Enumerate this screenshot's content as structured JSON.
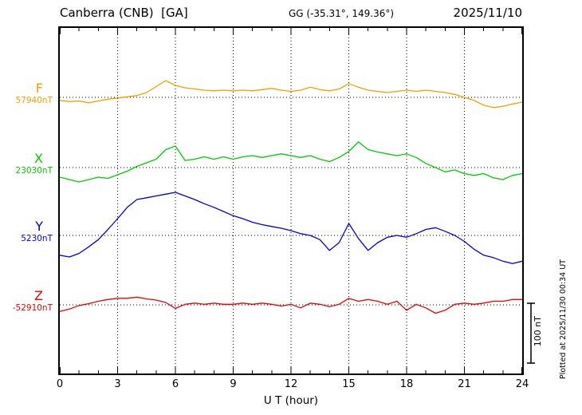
{
  "chart_data": {
    "type": "line",
    "title": "Canberra (CNB)  [GA]",
    "subtitle": "GG (-35.31°, 149.36°)",
    "date": "2025/11/10",
    "xlabel": "U T (hour)",
    "xlim": [
      0,
      24
    ],
    "x_ticks": [
      0,
      3,
      6,
      9,
      12,
      15,
      18,
      21,
      24
    ],
    "grid_hours": [
      3,
      6,
      9,
      12,
      15,
      18,
      21
    ],
    "step_hours": 0.5,
    "unit": "nT",
    "scale_bar": {
      "label": "100 nT",
      "nT": 100
    },
    "plotted_at": "Plotted at 2025/11/30 00:34 UT",
    "series": [
      {
        "name": "F",
        "baseline_label": "57940nT",
        "baseline_nT": 57940,
        "color": "#f0a000",
        "offsets_nT": [
          -5,
          -7,
          -6,
          -9,
          -6,
          -3,
          -1,
          1,
          3,
          8,
          18,
          28,
          20,
          16,
          14,
          12,
          11,
          12,
          11,
          12,
          11,
          13,
          15,
          12,
          10,
          12,
          17,
          13,
          11,
          14,
          23,
          17,
          12,
          10,
          8,
          10,
          12,
          10,
          12,
          10,
          8,
          5,
          0,
          -5,
          -13,
          -17,
          -15,
          -11,
          -8
        ]
      },
      {
        "name": "X",
        "baseline_label": "23030nT",
        "baseline_nT": 23030,
        "color": "#00cc00",
        "offsets_nT": [
          -16,
          -20,
          -24,
          -20,
          -16,
          -18,
          -12,
          -6,
          2,
          8,
          14,
          30,
          36,
          12,
          14,
          18,
          14,
          18,
          14,
          18,
          20,
          17,
          20,
          23,
          20,
          17,
          20,
          14,
          10,
          17,
          27,
          43,
          30,
          26,
          23,
          20,
          23,
          17,
          7,
          0,
          -7,
          -4,
          -10,
          -13,
          -10,
          -17,
          -20,
          -13,
          -10
        ]
      },
      {
        "name": "Y",
        "baseline_label": "5230nT",
        "baseline_nT": 5230,
        "color": "#0000e0",
        "offsets_nT": [
          -33,
          -36,
          -30,
          -19,
          -7,
          10,
          28,
          47,
          60,
          63,
          66,
          69,
          72,
          66,
          60,
          53,
          47,
          40,
          33,
          28,
          22,
          18,
          15,
          12,
          8,
          3,
          0,
          -7,
          -25,
          -12,
          20,
          -5,
          -25,
          -12,
          -3,
          0,
          -3,
          3,
          10,
          13,
          7,
          0,
          -10,
          -23,
          -33,
          -37,
          -43,
          -47,
          -43
        ]
      },
      {
        "name": "Z",
        "baseline_label": "-52910nT",
        "baseline_nT": -52910,
        "color": "#ee0000",
        "offsets_nT": [
          -11,
          -7,
          -1,
          2,
          6,
          9,
          11,
          11,
          13,
          10,
          8,
          4,
          -6,
          1,
          3,
          1,
          3,
          1,
          1,
          3,
          1,
          3,
          1,
          -2,
          1,
          -5,
          3,
          1,
          -3,
          1,
          11,
          6,
          9,
          6,
          1,
          6,
          -9,
          1,
          -5,
          -14,
          -9,
          1,
          3,
          1,
          3,
          6,
          6,
          9,
          9
        ]
      }
    ]
  }
}
